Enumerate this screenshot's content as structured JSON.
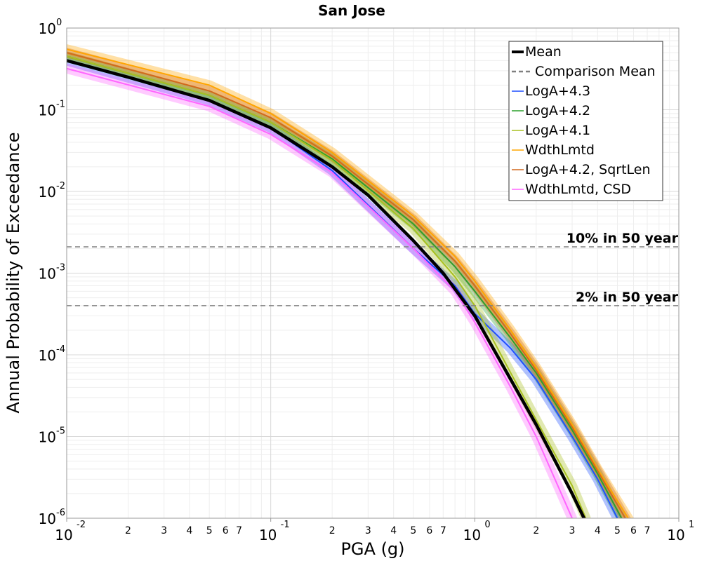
{
  "chart_data": {
    "type": "line",
    "title": "San Jose",
    "xlabel": "PGA (g)",
    "ylabel": "Annual Probability of Exceedance",
    "xscale": "log",
    "yscale": "log",
    "xlim": [
      0.01,
      10
    ],
    "ylim": [
      1e-06,
      1
    ],
    "grid": true,
    "legend_position": "top-right",
    "x_tick_labels": {
      "major": [
        {
          "base": "10",
          "exp": "-2"
        },
        {
          "base": "10",
          "exp": "-1"
        },
        {
          "base": "10",
          "exp": "0"
        },
        {
          "base": "10",
          "exp": "1"
        }
      ],
      "minor": [
        "2",
        "3",
        "4",
        "5",
        "6",
        "7"
      ]
    },
    "y_tick_labels": [
      {
        "base": "10",
        "exp": "-6"
      },
      {
        "base": "10",
        "exp": "-5"
      },
      {
        "base": "10",
        "exp": "-4"
      },
      {
        "base": "10",
        "exp": "-3"
      },
      {
        "base": "10",
        "exp": "-2"
      },
      {
        "base": "10",
        "exp": "-1"
      },
      {
        "base": "10",
        "exp": "0"
      }
    ],
    "reference_lines": [
      {
        "label": "10% in 50 year",
        "y": 0.0021
      },
      {
        "label": "2% in 50 year",
        "y": 0.0004
      }
    ],
    "legend": [
      {
        "label": "Mean",
        "color": "#000000",
        "style": "solid-thick"
      },
      {
        "label": "Comparison Mean",
        "color": "#808080",
        "style": "dashed"
      },
      {
        "label": "LogA+4.3",
        "color": "#1f4fff",
        "style": "solid"
      },
      {
        "label": "LogA+4.2",
        "color": "#2ca02c",
        "style": "solid"
      },
      {
        "label": "LogA+4.1",
        "color": "#a8c020",
        "style": "solid"
      },
      {
        "label": "WdthLmtd",
        "color": "#ffa500",
        "style": "solid"
      },
      {
        "label": "LogA+4.2, SqrtLen",
        "color": "#d2691e",
        "style": "solid"
      },
      {
        "label": "WdthLmtd, CSD",
        "color": "#ff66ff",
        "style": "solid"
      }
    ],
    "series": [
      {
        "name": "Mean",
        "color": "#000000",
        "x": [
          0.01,
          0.02,
          0.05,
          0.1,
          0.2,
          0.3,
          0.5,
          0.7,
          1.0,
          1.5,
          2.0,
          3.0,
          3.5
        ],
        "y": [
          0.4,
          0.25,
          0.13,
          0.06,
          0.02,
          0.009,
          0.0025,
          0.001,
          0.0003,
          5e-05,
          1.4e-05,
          2e-06,
          9e-07
        ]
      },
      {
        "name": "LogA+4.3",
        "color": "#1f4fff",
        "x": [
          0.01,
          0.05,
          0.1,
          0.2,
          0.5,
          0.8,
          1.0,
          1.5,
          2.0,
          3.0,
          4.0,
          5.0
        ],
        "y": [
          0.4,
          0.13,
          0.06,
          0.018,
          0.002,
          0.0007,
          0.00032,
          0.00012,
          5e-05,
          1e-05,
          3e-06,
          1e-06
        ]
      },
      {
        "name": "LogA+4.2",
        "color": "#2ca02c",
        "x": [
          0.01,
          0.05,
          0.1,
          0.2,
          0.5,
          0.8,
          1.0,
          1.5,
          2.0,
          3.0,
          4.0,
          5.5
        ],
        "y": [
          0.45,
          0.15,
          0.07,
          0.025,
          0.004,
          0.0012,
          0.0006,
          0.00016,
          6e-05,
          1.2e-05,
          3.5e-06,
          8e-07
        ]
      },
      {
        "name": "LogA+4.1",
        "color": "#a8c020",
        "x": [
          0.01,
          0.05,
          0.1,
          0.2,
          0.5,
          0.8,
          1.0,
          1.5,
          2.0,
          3.0,
          3.5
        ],
        "y": [
          0.45,
          0.15,
          0.07,
          0.024,
          0.0035,
          0.0009,
          0.0004,
          6e-05,
          1.6e-05,
          2.5e-06,
          1e-06
        ]
      },
      {
        "name": "WdthLmtd",
        "color": "#ffa500",
        "x": [
          0.01,
          0.05,
          0.1,
          0.2,
          0.5,
          0.8,
          1.0,
          1.5,
          2.0,
          3.0,
          4.0,
          5.8
        ],
        "y": [
          0.55,
          0.2,
          0.09,
          0.03,
          0.005,
          0.0016,
          0.0008,
          0.0002,
          7e-05,
          1.4e-05,
          4e-06,
          9e-07
        ]
      },
      {
        "name": "LogA+4.2, SqrtLen",
        "color": "#d2691e",
        "x": [
          0.01,
          0.05,
          0.1,
          0.2,
          0.5,
          0.8,
          1.0,
          1.5,
          2.0,
          3.0,
          4.0,
          5.6
        ],
        "y": [
          0.5,
          0.17,
          0.08,
          0.027,
          0.0045,
          0.0014,
          0.0007,
          0.00018,
          6.5e-05,
          1.3e-05,
          3.8e-06,
          9e-07
        ]
      },
      {
        "name": "WdthLmtd, CSD",
        "color": "#ff66ff",
        "x": [
          0.01,
          0.05,
          0.1,
          0.2,
          0.5,
          0.8,
          1.0,
          1.5,
          2.0,
          3.0
        ],
        "y": [
          0.32,
          0.11,
          0.05,
          0.017,
          0.002,
          0.0006,
          0.00025,
          4e-05,
          1e-05,
          1e-06
        ]
      }
    ]
  }
}
